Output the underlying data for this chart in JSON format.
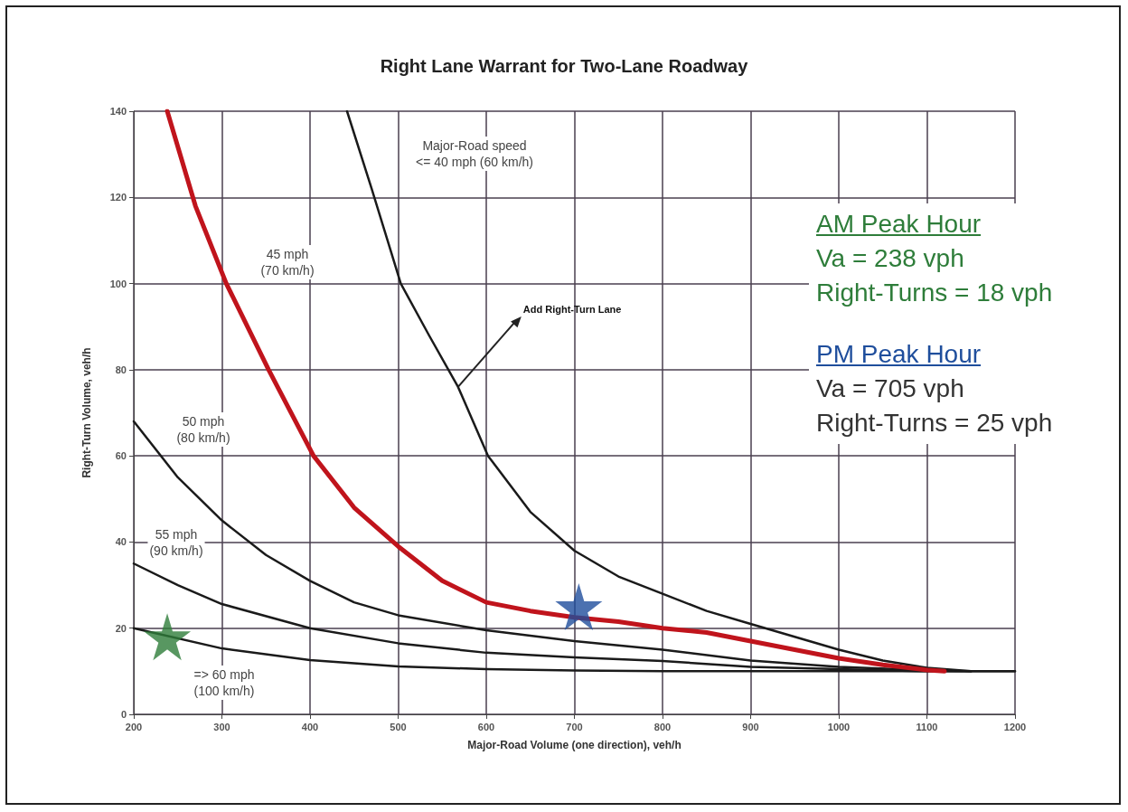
{
  "chart_data": {
    "type": "line",
    "title": "Right Lane Warrant for Two-Lane Roadway",
    "xlabel": "Major-Road Volume (one direction), veh/h",
    "ylabel": "Right-Turn Volume, veh/h",
    "xlim": [
      200,
      1200
    ],
    "xticks": [
      200,
      300,
      400,
      500,
      600,
      700,
      800,
      900,
      1000,
      1100,
      1200
    ],
    "ylim": [
      0,
      140
    ],
    "yticks": [
      0,
      20,
      40,
      60,
      80,
      100,
      120,
      140
    ],
    "grid": true,
    "line_style": "solid",
    "series": [
      {
        "color": "#1a1a1a",
        "marker": "none",
        "x": [
          442,
          470,
          503,
          535,
          568,
          602,
          650,
          700,
          750,
          800,
          850,
          900,
          950,
          1000,
          1050,
          1100,
          1150,
          1200
        ],
        "values": [
          140,
          122,
          100,
          88,
          76,
          60,
          47,
          38,
          32,
          28,
          24,
          21,
          18,
          15,
          12.5,
          10.8,
          10,
          10
        ]
      },
      {
        "color": "#1a1a1a",
        "marker": "none",
        "x": [
          200,
          250,
          300,
          350,
          400,
          450,
          500,
          600,
          700,
          800,
          900,
          1000,
          1100,
          1150
        ],
        "values": [
          68,
          55,
          45,
          37,
          31,
          26,
          23,
          19.5,
          17,
          15,
          12.5,
          11,
          10.2,
          10
        ]
      },
      {
        "color": "#1a1a1a",
        "marker": "none",
        "x": [
          200,
          250,
          300,
          400,
          500,
          600,
          700,
          800,
          900,
          1000,
          1100,
          1150
        ],
        "values": [
          35,
          30,
          25.6,
          20,
          16.5,
          14.3,
          13.2,
          12.4,
          11,
          10.5,
          10,
          10
        ]
      },
      {
        "color": "#1a1a1a",
        "marker": "none",
        "x": [
          200,
          300,
          400,
          500,
          600,
          700,
          800,
          1200
        ],
        "values": [
          20,
          15.3,
          12.6,
          11.1,
          10.5,
          10.2,
          10,
          10
        ]
      },
      {
        "color": "#c0141c",
        "marker": "none",
        "x": [
          238,
          270,
          305,
          353,
          404,
          450,
          500,
          550,
          600,
          650,
          700,
          750,
          800,
          850,
          900,
          950,
          1000,
          1050,
          1100,
          1120
        ],
        "values": [
          140,
          118,
          100,
          80,
          60,
          48,
          39,
          31,
          26,
          24,
          22.5,
          21.5,
          20,
          19,
          17,
          15,
          13,
          11.5,
          10.3,
          10
        ]
      },
      {
        "type": "scatter",
        "color": "#2e7d3a",
        "marker": "star",
        "x": [
          238
        ],
        "values": [
          18
        ]
      },
      {
        "type": "scatter",
        "color": "#1f4e9c",
        "marker": "star",
        "x": [
          705
        ],
        "values": [
          25
        ]
      }
    ],
    "annotations": [
      "Major-Road speed\n<= 40 mph (60 km/h)",
      "45 mph\n(70 km/h)",
      "50 mph\n(80 km/h)",
      "55 mph\n(90 km/h)",
      "=> 60 mph\n(100 km/h)",
      {
        "text": "Add Right-Turn Lane",
        "x": 568,
        "y": 76
      },
      "AM Peak Hour",
      "Va = 238 vph",
      "Right-Turns = 18 vph",
      "PM Peak Hour",
      "Va = 705 vph",
      "Right-Turns = 25 vph"
    ]
  }
}
